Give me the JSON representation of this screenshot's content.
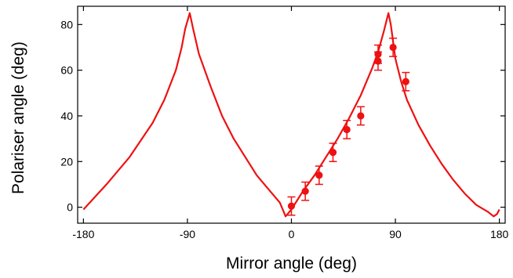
{
  "chart_data": {
    "type": "scatter",
    "title": "",
    "xlabel": "Mirror angle (deg)",
    "ylabel": "Polariser angle (deg)",
    "xlim": [
      -185,
      185
    ],
    "ylim": [
      -7,
      88
    ],
    "x_ticks": [
      -180,
      -90,
      0,
      90,
      180
    ],
    "y_ticks": [
      0,
      20,
      40,
      60,
      80
    ],
    "grid": false,
    "legend": "none",
    "colors": {
      "series": "#ee1111",
      "axes": "#000000"
    },
    "series": [
      {
        "kind": "line",
        "x": [
          -180,
          -160,
          -140,
          -120,
          -110,
          -100,
          -95,
          -92,
          -88,
          -85,
          -80,
          -70,
          -60,
          -50,
          -40,
          -30,
          -20,
          -10,
          -5,
          0,
          10,
          20,
          30,
          40,
          50,
          60,
          70,
          75,
          80,
          84,
          86,
          90,
          95,
          100,
          110,
          120,
          130,
          140,
          150,
          160,
          170,
          175,
          178,
          180
        ],
        "y": [
          -1,
          10,
          22,
          37,
          47,
          60,
          70,
          78,
          85,
          78,
          67,
          53,
          40,
          30,
          22,
          14,
          8,
          2,
          -4,
          -1,
          7,
          14,
          22,
          30,
          39,
          49,
          61,
          68,
          77,
          85,
          80,
          65,
          55,
          47,
          36,
          27,
          19,
          12,
          6,
          1,
          -2,
          -4,
          -3,
          -1
        ]
      },
      {
        "kind": "scatter_with_error_bars",
        "x": [
          0,
          12,
          24,
          36,
          48,
          60,
          75,
          75,
          88,
          99
        ],
        "y": [
          0.5,
          7,
          14,
          24,
          34,
          40,
          67,
          64,
          70,
          55
        ],
        "error": [
          4,
          4,
          4,
          4,
          4,
          4,
          4,
          4,
          4,
          4
        ]
      }
    ]
  }
}
